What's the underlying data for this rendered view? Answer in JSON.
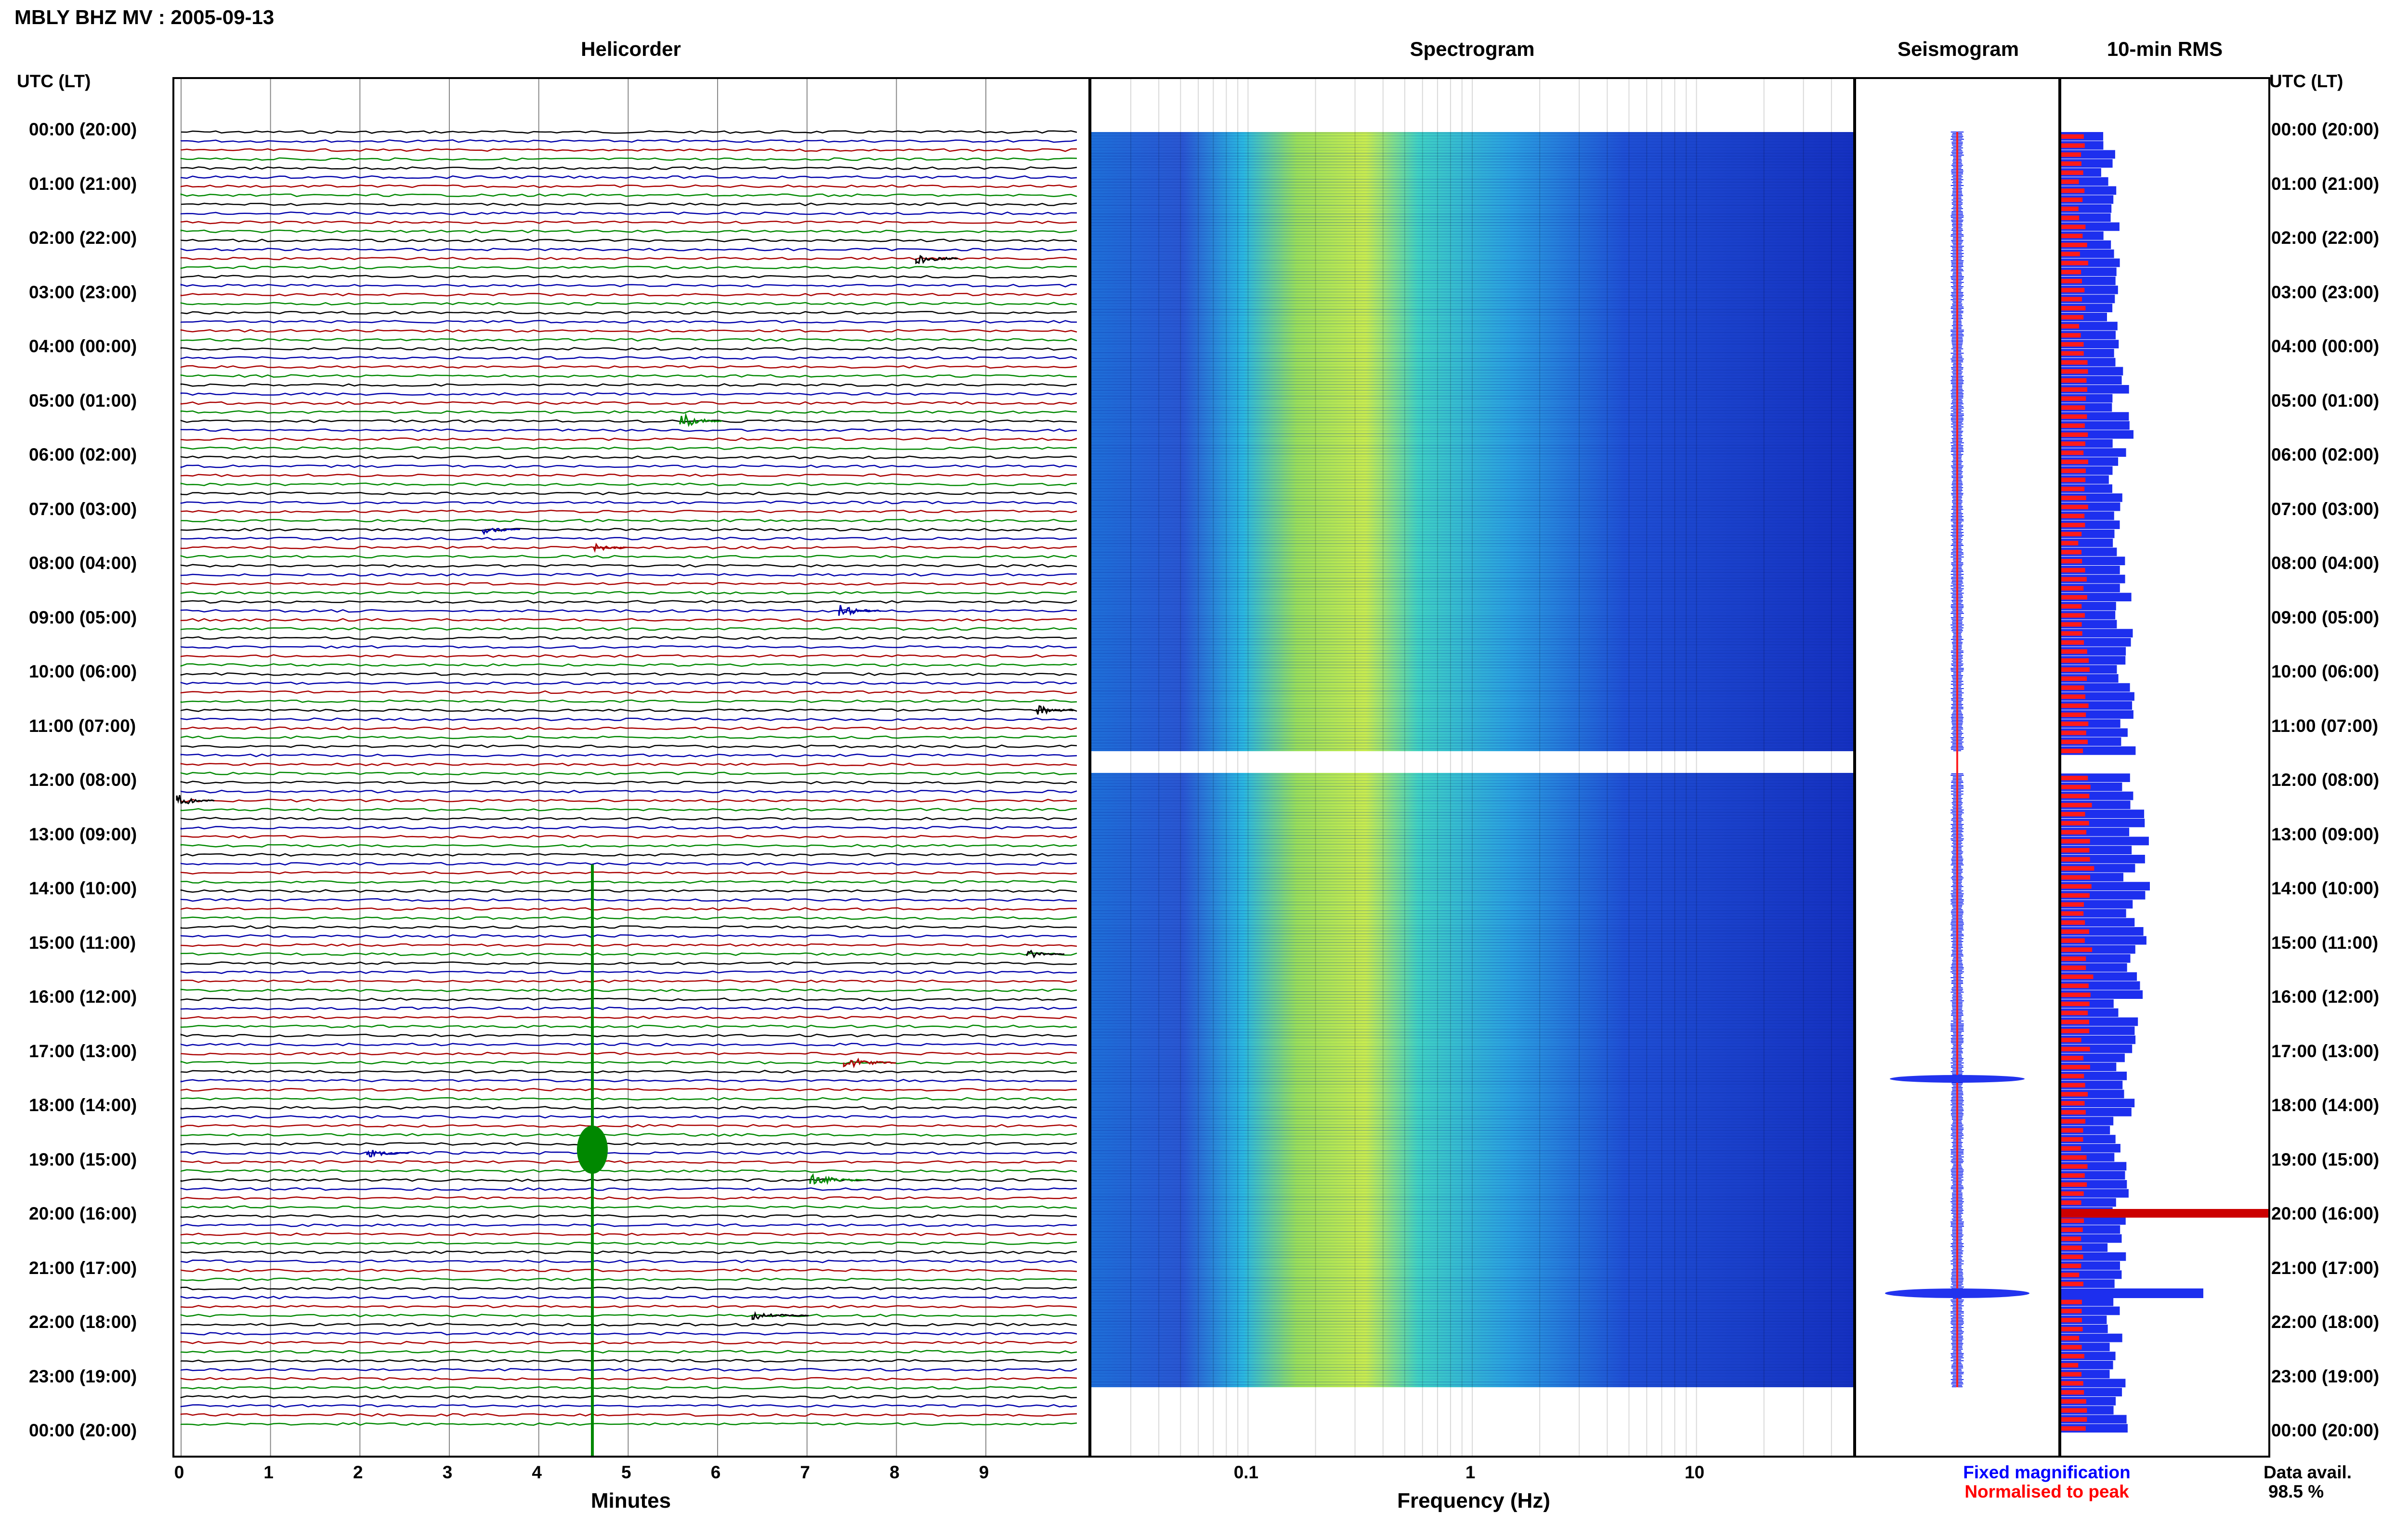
{
  "header": {
    "station_title": "MBLY BHZ MV : 2005-09-13",
    "utc_lt_left": "UTC (LT)",
    "utc_lt_right": "UTC (LT)"
  },
  "panels": {
    "helicorder": "Helicorder",
    "spectrogram": "Spectrogram",
    "seismogram": "Seismogram",
    "rms": "10-min RMS"
  },
  "time_labels": [
    "00:00 (20:00)",
    "01:00 (21:00)",
    "02:00 (22:00)",
    "03:00 (23:00)",
    "04:00 (00:00)",
    "05:00 (01:00)",
    "06:00 (02:00)",
    "07:00 (03:00)",
    "08:00 (04:00)",
    "09:00 (05:00)",
    "10:00 (06:00)",
    "11:00 (07:00)",
    "12:00 (08:00)",
    "13:00 (09:00)",
    "14:00 (10:00)",
    "15:00 (11:00)",
    "16:00 (12:00)",
    "17:00 (13:00)",
    "18:00 (14:00)",
    "19:00 (15:00)",
    "20:00 (16:00)",
    "21:00 (17:00)",
    "22:00 (18:00)",
    "23:00 (19:00)",
    "00:00 (20:00)"
  ],
  "helicorder_axis": {
    "ticks": [
      "0",
      "1",
      "2",
      "3",
      "4",
      "5",
      "6",
      "7",
      "8",
      "9"
    ],
    "label": "Minutes",
    "trace_colors": [
      "#000000",
      "#0000aa",
      "#aa0000",
      "#008800"
    ]
  },
  "spectrogram_axis": {
    "ticks": [
      "0.1",
      "1",
      "10"
    ],
    "label": "Frequency (Hz)",
    "scale": "log"
  },
  "legend": {
    "fixed": "Fixed magnification",
    "normalised": "Normalised to peak",
    "fixed_color": "#0000ff",
    "normalised_color": "#ff0000"
  },
  "data_avail": {
    "label": "Data avail.",
    "value": "98.5 %"
  },
  "rms_data": {
    "fixed_relative": [
      0.22,
      0.24,
      0.26,
      0.25,
      0.28,
      0.3,
      0.27,
      0.26,
      0.29,
      0.31,
      0.3,
      0.32,
      0.34,
      0.36,
      0.35,
      0.33,
      0.31,
      0.3,
      0.29,
      0.28,
      0.27,
      0.26,
      0.25,
      0.27
    ],
    "normalised_relative": [
      0.1,
      0.1,
      0.11,
      0.1,
      0.11,
      0.12,
      0.11,
      0.1,
      0.11,
      0.12,
      0.11,
      0.12,
      0.13,
      0.14,
      0.13,
      0.13,
      0.12,
      0.12,
      0.11,
      0.11,
      0.11,
      0.1,
      0.1,
      0.11
    ]
  }
}
